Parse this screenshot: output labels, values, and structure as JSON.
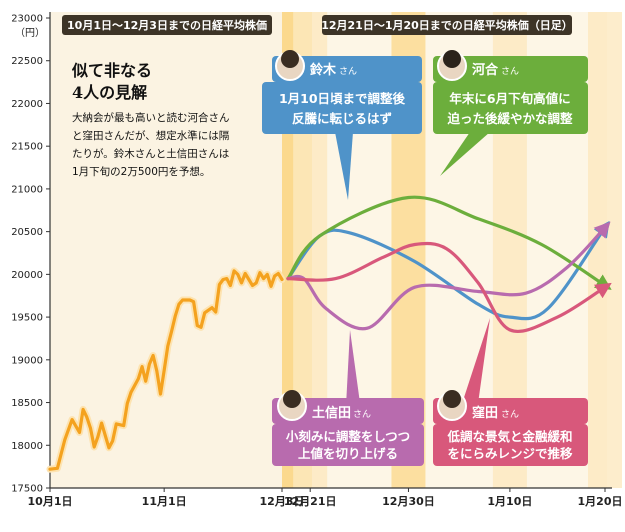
{
  "colors": {
    "history": "#f4a21f",
    "history_glow": "#fde3b0",
    "band": "#fde9bf",
    "band_dark": "#fbd98e",
    "panel_bg": "#fbf3e2",
    "title_bg": "#3d3427",
    "suzuki": "#4f93c9",
    "kawai": "#6cae3c",
    "toshinda": "#b86bae",
    "kubota": "#d8587b"
  },
  "panels": {
    "left_title": "10月1日～12月3日までの日経平均株価",
    "right_title": "12月21日～1月20日までの日経平均株価（日足）"
  },
  "headline": [
    "似て非なる",
    "4人の見解"
  ],
  "body_text": [
    "大納会が最も高いと読む河合さん",
    "と窪田さんだが、想定水準には隔",
    "たりが。鈴木さんと土信田さんは",
    "1月下旬の2万500円を予想。"
  ],
  "honorific": "さん",
  "analysts": [
    {
      "key": "suzuki",
      "name": "鈴木",
      "lines": [
        "1月10日頃まで調整後",
        "反騰に転じるはず"
      ]
    },
    {
      "key": "kawai",
      "name": "河合",
      "lines": [
        "年末に6月下旬高値に",
        "迫った後緩やかな調整"
      ]
    },
    {
      "key": "toshinda",
      "name": "土信田",
      "lines": [
        "小刻みに調整をしつつ",
        "上値を切り上げる"
      ]
    },
    {
      "key": "kubota",
      "name": "窪田",
      "lines": [
        "低調な景気と金融緩和",
        "をにらみレンジで推移"
      ]
    }
  ],
  "chart_data": {
    "type": "line",
    "y_unit": "（円）",
    "ylim": [
      17500,
      23000
    ],
    "yticks": [
      17500,
      18000,
      18500,
      19000,
      19500,
      20000,
      20500,
      21000,
      21500,
      22000,
      22500,
      23000
    ],
    "x_ticks_history": [
      "10月1日",
      "11月1日",
      "12月3日"
    ],
    "x_ticks_forecast": [
      "12月21日",
      "12月30日",
      "1月10日",
      "1月20日"
    ],
    "history": {
      "name": "日経平均株価",
      "x_range_days": [
        0,
        63
      ],
      "points": [
        [
          0,
          17720
        ],
        [
          2,
          17730
        ],
        [
          4,
          18060
        ],
        [
          6,
          18300
        ],
        [
          8,
          18150
        ],
        [
          9,
          18420
        ],
        [
          10,
          18330
        ],
        [
          11,
          18200
        ],
        [
          12,
          17980
        ],
        [
          13,
          18100
        ],
        [
          14,
          18260
        ],
        [
          16,
          17970
        ],
        [
          17,
          18050
        ],
        [
          18,
          18250
        ],
        [
          20,
          18230
        ],
        [
          21,
          18490
        ],
        [
          22,
          18620
        ],
        [
          24,
          18780
        ],
        [
          25,
          18920
        ],
        [
          26,
          18750
        ],
        [
          27,
          18950
        ],
        [
          28,
          19050
        ],
        [
          29,
          18870
        ],
        [
          30,
          18600
        ],
        [
          31,
          18880
        ],
        [
          32,
          19160
        ],
        [
          33,
          19330
        ],
        [
          34,
          19510
        ],
        [
          35,
          19650
        ],
        [
          36,
          19700
        ],
        [
          38,
          19700
        ],
        [
          39,
          19680
        ],
        [
          40,
          19400
        ],
        [
          41,
          19380
        ],
        [
          42,
          19550
        ],
        [
          44,
          19610
        ],
        [
          45,
          19560
        ],
        [
          46,
          19880
        ],
        [
          47,
          19940
        ],
        [
          48,
          19950
        ],
        [
          49,
          19870
        ],
        [
          50,
          20040
        ],
        [
          51,
          20000
        ],
        [
          52,
          19900
        ],
        [
          53,
          20010
        ],
        [
          55,
          19870
        ],
        [
          56,
          19900
        ],
        [
          57,
          20020
        ],
        [
          58,
          19950
        ],
        [
          59,
          20000
        ],
        [
          60,
          19860
        ],
        [
          61,
          19980
        ],
        [
          62,
          20010
        ],
        [
          63,
          19940
        ]
      ]
    },
    "forecast_axis": {
      "x_range": [
        0,
        100
      ],
      "tick_positions": [
        7,
        38,
        70,
        100
      ]
    },
    "series": [
      {
        "key": "suzuki",
        "name": "鈴木",
        "points": [
          [
            0,
            19950
          ],
          [
            10,
            20450
          ],
          [
            20,
            20480
          ],
          [
            40,
            20150
          ],
          [
            60,
            19650
          ],
          [
            70,
            19500
          ],
          [
            82,
            19600
          ],
          [
            100,
            20550
          ]
        ]
      },
      {
        "key": "kawai",
        "name": "河合",
        "points": [
          [
            0,
            19950
          ],
          [
            10,
            20450
          ],
          [
            38,
            20900
          ],
          [
            60,
            20650
          ],
          [
            80,
            20350
          ],
          [
            100,
            19870
          ]
        ]
      },
      {
        "key": "toshinda",
        "name": "土信田",
        "points": [
          [
            0,
            19950
          ],
          [
            5,
            19950
          ],
          [
            12,
            19600
          ],
          [
            25,
            19370
          ],
          [
            40,
            19850
          ],
          [
            60,
            19800
          ],
          [
            75,
            19780
          ],
          [
            88,
            20080
          ],
          [
            100,
            20550
          ]
        ]
      },
      {
        "key": "kubota",
        "name": "窪田",
        "points": [
          [
            0,
            19950
          ],
          [
            15,
            19950
          ],
          [
            30,
            20200
          ],
          [
            40,
            20350
          ],
          [
            50,
            20300
          ],
          [
            60,
            19900
          ],
          [
            70,
            19350
          ],
          [
            85,
            19500
          ],
          [
            100,
            19850
          ]
        ]
      }
    ]
  }
}
